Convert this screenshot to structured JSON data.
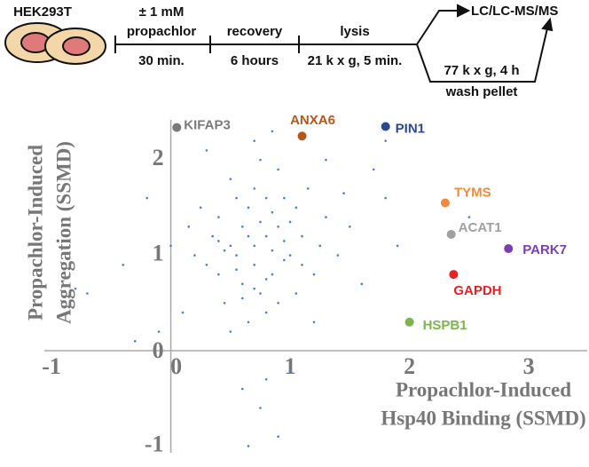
{
  "workflow": {
    "cell_label": "HEK293T",
    "steps": [
      {
        "lines": [
          "± 1 mM",
          "propachlor"
        ],
        "sub": "30 min."
      },
      {
        "lines": [
          "recovery"
        ],
        "sub": "6 hours"
      },
      {
        "lines": [
          "lysis"
        ],
        "sub": "21 k x g, 5 min."
      }
    ],
    "output": "LC/LC-MS/MS",
    "pellet_step": [
      "77 k x g, 4 h",
      "wash pellet"
    ]
  },
  "chart_data": {
    "type": "scatter",
    "xlabel": [
      "Propachlor-Induced",
      "Hsp40 Binding (SSMD)"
    ],
    "ylabel": [
      "Propachlor-Induced",
      "Aggregation (SSMD)"
    ],
    "xlim": [
      -1.06,
      3.49
    ],
    "ylim": [
      -1.07,
      2.42
    ],
    "xticks": [
      -1,
      0,
      1,
      2,
      3
    ],
    "yticks": [
      -1,
      0,
      1,
      2
    ],
    "grid": false,
    "series": [
      {
        "color": "#4a7fd4",
        "x": [
          0.5,
          0.7,
          0.9,
          0.6,
          0.8,
          1.0,
          0.4,
          0.75,
          0.65,
          0.85,
          1.1,
          0.55,
          0.95,
          0.7,
          0.3,
          1.2,
          0.6,
          0.8,
          0.9,
          0.45,
          1.3,
          0.35,
          0.75,
          1.05,
          0.5,
          0.2,
          1.4,
          0.65,
          0.85,
          0.95,
          0.55,
          1.15,
          0.25,
          0.7,
          0.8,
          1.0,
          0.6,
          0.4,
          0.9,
          1.25,
          0.15,
          1.5,
          0.7,
          0.5,
          1.6,
          -0.2,
          -0.4,
          -0.7,
          0.0,
          0.1,
          1.8,
          1.7,
          0.8,
          0.75,
          0.9,
          0.6,
          1.0,
          0.65,
          0.3,
          1.3,
          0.85,
          1.2,
          1.9,
          -0.1,
          0.45,
          0.95,
          0.75,
          0.55,
          0.85,
          1.1,
          0.65,
          0.7,
          0.8,
          0.4,
          1.05,
          -0.8,
          1.8,
          2.5,
          -0.3,
          1.45
        ],
        "values": [
          1.1,
          0.9,
          1.3,
          0.7,
          1.2,
          1.0,
          1.4,
          0.6,
          1.5,
          0.8,
          1.2,
          1.0,
          1.6,
          1.7,
          0.9,
          0.8,
          1.3,
          0.4,
          1.9,
          0.5,
          1.4,
          1.2,
          2.0,
          0.6,
          1.8,
          1.0,
          1.0,
          0.3,
          1.45,
          0.95,
          1.6,
          1.7,
          1.5,
          1.1,
          0.75,
          1.35,
          0.55,
          0.8,
          0.5,
          1.1,
          1.3,
          1.3,
          2.2,
          0.2,
          0.7,
          1.6,
          0.9,
          0.6,
          1.1,
          0.4,
          1.6,
          1.9,
          -0.3,
          -0.6,
          -0.9,
          -0.4,
          -0.2,
          -1.0,
          2.1,
          2.0,
          2.3,
          0.3,
          1.1,
          0.2,
          1.05,
          1.15,
          1.35,
          0.85,
          1.05,
          0.9,
          1.2,
          0.65,
          1.6,
          1.15,
          1.5,
          0.65,
          2.2,
          1.4,
          0.1,
          1.65
        ]
      }
    ],
    "highlights": [
      {
        "name": "KIFAP3",
        "color": "#7a7a7a",
        "x": 0.05,
        "y": 2.34
      },
      {
        "name": "ANXA6",
        "color": "#b5571b",
        "x": 1.1,
        "y": 2.25
      },
      {
        "name": "PIN1",
        "color": "#2a4a8c",
        "x": 1.8,
        "y": 2.35
      },
      {
        "name": "TYMS",
        "color": "#f08a3c",
        "x": 2.3,
        "y": 1.55
      },
      {
        "name": "ACAT1",
        "color": "#a0a0a0",
        "x": 2.35,
        "y": 1.22
      },
      {
        "name": "PARK7",
        "color": "#7b3fb0",
        "x": 2.83,
        "y": 1.07
      },
      {
        "name": "GAPDH",
        "color": "#e82020",
        "x": 2.37,
        "y": 0.8
      },
      {
        "name": "HSPB1",
        "color": "#7ab648",
        "x": 2.0,
        "y": 0.3
      }
    ]
  }
}
